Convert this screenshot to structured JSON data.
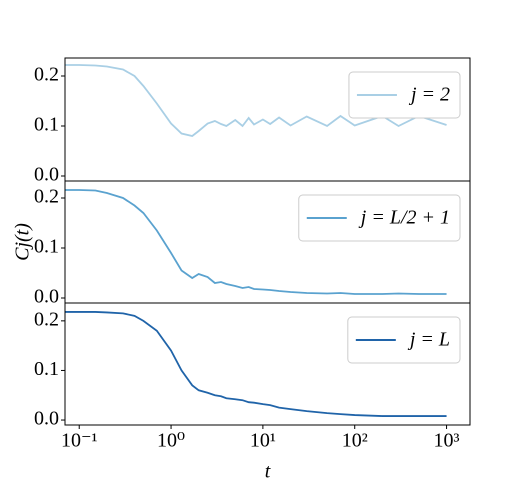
{
  "chart_data": [
    {
      "type": "line",
      "xscale": "log",
      "legend": "upper right",
      "x": [
        0.07,
        0.1,
        0.15,
        0.2,
        0.3,
        0.4,
        0.5,
        0.7,
        1,
        1.3,
        1.7,
        2,
        2.5,
        3,
        3.5,
        4,
        5,
        6,
        7,
        8,
        10,
        12,
        15,
        20,
        30,
        50,
        70,
        100,
        200,
        300,
        500,
        1000
      ],
      "series": [
        {
          "name": "j = 2",
          "color": "#a9cfe5",
          "values": [
            0.222,
            0.222,
            0.221,
            0.219,
            0.213,
            0.2,
            0.18,
            0.145,
            0.105,
            0.085,
            0.08,
            0.09,
            0.105,
            0.11,
            0.104,
            0.1,
            0.112,
            0.1,
            0.116,
            0.103,
            0.113,
            0.104,
            0.117,
            0.101,
            0.119,
            0.1,
            0.12,
            0.101,
            0.12,
            0.1,
            0.12,
            0.102
          ]
        }
      ],
      "xlim": [
        0.07,
        1800
      ],
      "ylim": [
        -0.01,
        0.236
      ],
      "yticks": [
        {
          "value": 0,
          "label": "0.0"
        },
        0.1,
        0.2
      ]
    },
    {
      "type": "line",
      "xscale": "log",
      "legend": "upper right",
      "ylabel": "Cj(t)",
      "x": [
        0.07,
        0.1,
        0.15,
        0.2,
        0.3,
        0.4,
        0.5,
        0.7,
        1,
        1.3,
        1.7,
        2,
        2.5,
        3,
        3.5,
        4,
        5,
        6,
        7,
        8,
        10,
        12,
        15,
        20,
        30,
        50,
        70,
        100,
        200,
        300,
        500,
        1000
      ],
      "series": [
        {
          "name": "j = L/2 + 1",
          "color": "#5aa2cf",
          "values": [
            0.216,
            0.216,
            0.215,
            0.21,
            0.2,
            0.185,
            0.17,
            0.135,
            0.09,
            0.055,
            0.04,
            0.048,
            0.042,
            0.03,
            0.032,
            0.028,
            0.024,
            0.02,
            0.022,
            0.018,
            0.017,
            0.016,
            0.014,
            0.012,
            0.01,
            0.009,
            0.01,
            0.008,
            0.008,
            0.009,
            0.008,
            0.008
          ]
        }
      ],
      "xlim": [
        0.07,
        1800
      ],
      "ylim": [
        -0.01,
        0.234
      ],
      "yticks": [
        {
          "value": 0,
          "label": "0.0"
        },
        0.1,
        0.2
      ]
    },
    {
      "type": "line",
      "xscale": "log",
      "legend": "upper right",
      "xlabel": "t",
      "x": [
        0.07,
        0.1,
        0.15,
        0.2,
        0.3,
        0.4,
        0.5,
        0.7,
        1,
        1.3,
        1.7,
        2,
        2.5,
        3,
        3.5,
        4,
        5,
        6,
        7,
        8,
        10,
        12,
        15,
        20,
        30,
        50,
        70,
        100,
        200,
        300,
        500,
        1000
      ],
      "series": [
        {
          "name": "j = L",
          "color": "#2064a9",
          "values": [
            0.218,
            0.218,
            0.218,
            0.217,
            0.215,
            0.21,
            0.2,
            0.18,
            0.14,
            0.1,
            0.07,
            0.06,
            0.055,
            0.05,
            0.048,
            0.044,
            0.042,
            0.04,
            0.036,
            0.035,
            0.032,
            0.03,
            0.025,
            0.022,
            0.018,
            0.014,
            0.012,
            0.01,
            0.008,
            0.008,
            0.008,
            0.008
          ]
        }
      ],
      "xlim": [
        0.07,
        1800
      ],
      "ylim": [
        -0.01,
        0.236
      ],
      "yticks": [
        {
          "value": 0,
          "label": "0.0"
        },
        0.1,
        0.2
      ],
      "xticks": [
        {
          "value": 0.1,
          "label": "10⁻¹"
        },
        {
          "value": 1,
          "label": "10⁰"
        },
        {
          "value": 10,
          "label": "10¹"
        },
        {
          "value": 100,
          "label": "10²"
        },
        {
          "value": 1000,
          "label": "10³"
        }
      ]
    }
  ]
}
